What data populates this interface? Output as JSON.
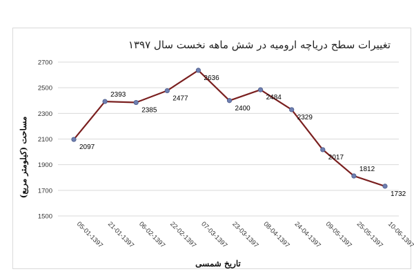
{
  "chart_data": {
    "type": "line",
    "title": "تغییرات سطح دریاچه ارومیه در شش ماهه نخست سال ۱۳۹۷",
    "xlabel": "تاریخ شمسی",
    "ylabel": "مساحت (کیلومتر مربع)",
    "categories": [
      "05-01-1397",
      "21-01-1397",
      "06-02-1397",
      "22-02-1397",
      "07-03-1397",
      "23-03-1397",
      "08-04-1397",
      "24-04-1397",
      "09-05-1397",
      "25-05-1397",
      "10-06-1397"
    ],
    "values": [
      2097,
      2393,
      2385,
      2477,
      2636,
      2400,
      2484,
      2329,
      2017,
      1812,
      1732
    ],
    "data_labels": [
      "2097",
      "2393",
      "2385",
      "2477",
      "2636",
      "2400",
      "2484",
      "2329",
      "2017",
      "1812",
      "1732"
    ],
    "ylim": [
      1500,
      2700
    ],
    "yticks": [
      "1500",
      "1700",
      "1900",
      "2100",
      "2300",
      "2500",
      "2700"
    ],
    "grid": true,
    "legend": "none",
    "line_color": "#7a1f1f",
    "marker_color": "#6f7fb0"
  }
}
